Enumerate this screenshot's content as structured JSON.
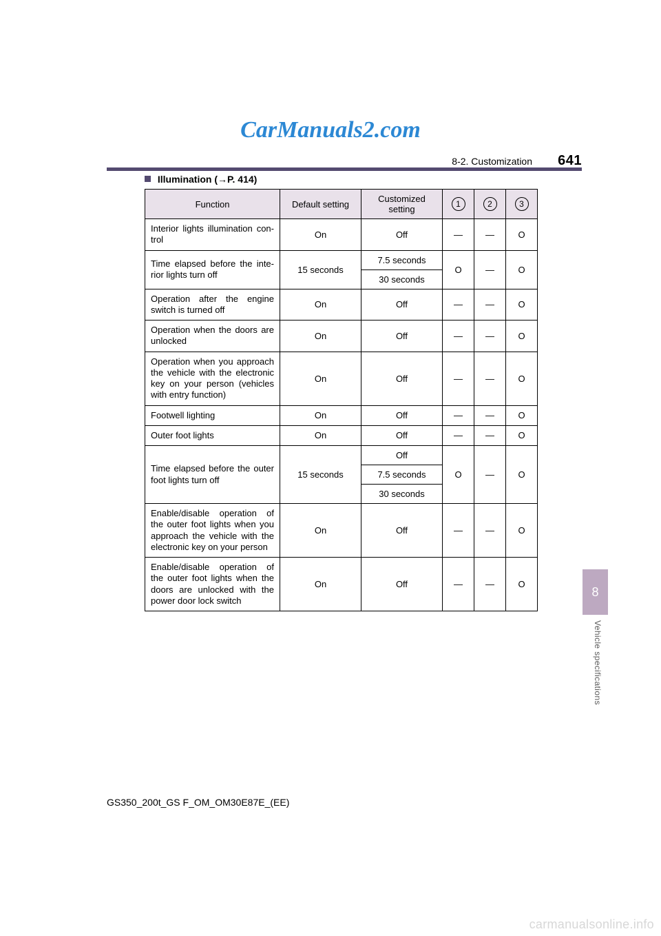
{
  "watermark_top": "CarManuals2.com",
  "section_name": "8-2. Customization",
  "page_number": "641",
  "heading": "Illumination (→P. 414)",
  "table": {
    "columns": [
      "Function",
      "Default setting",
      "Customized setting"
    ],
    "num_cols": [
      "1",
      "2",
      "3"
    ],
    "rows": [
      {
        "func": "Interior lights illumination con-trol",
        "def": "On",
        "cust": [
          "Off"
        ],
        "c1": "—",
        "c2": "—",
        "c3": "O"
      },
      {
        "func": "Time elapsed before the inte-rior lights turn off",
        "def": "15 seconds",
        "cust": [
          "7.5 seconds",
          "30 seconds"
        ],
        "c1": "O",
        "c2": "—",
        "c3": "O"
      },
      {
        "func": "Operation after the engine switch is turned off",
        "def": "On",
        "cust": [
          "Off"
        ],
        "c1": "—",
        "c2": "—",
        "c3": "O"
      },
      {
        "func": "Operation when the doors are unlocked",
        "def": "On",
        "cust": [
          "Off"
        ],
        "c1": "—",
        "c2": "—",
        "c3": "O"
      },
      {
        "func": "Operation when you approach the vehicle with the electronic key on your person (vehicles with entry function)",
        "def": "On",
        "cust": [
          "Off"
        ],
        "c1": "—",
        "c2": "—",
        "c3": "O"
      },
      {
        "func": "Footwell lighting",
        "def": "On",
        "cust": [
          "Off"
        ],
        "c1": "—",
        "c2": "—",
        "c3": "O"
      },
      {
        "func": "Outer foot lights",
        "def": "On",
        "cust": [
          "Off"
        ],
        "c1": "—",
        "c2": "—",
        "c3": "O"
      },
      {
        "func": "Time elapsed before the outer foot lights turn off",
        "def": "15 seconds",
        "cust": [
          "Off",
          "7.5 seconds",
          "30 seconds"
        ],
        "c1": "O",
        "c2": "—",
        "c3": "O"
      },
      {
        "func": "Enable/disable operation of the outer foot lights when you approach the vehicle with the electronic key on your person",
        "def": "On",
        "cust": [
          "Off"
        ],
        "c1": "—",
        "c2": "—",
        "c3": "O"
      },
      {
        "func": "Enable/disable operation of the outer foot lights when the doors are unlocked with the power door lock switch",
        "def": "On",
        "cust": [
          "Off"
        ],
        "c1": "—",
        "c2": "—",
        "c3": "O"
      }
    ]
  },
  "side_tab_number": "8",
  "side_label": "Vehicle specifications",
  "footer_code": "GS350_200t_GS F_OM_OM30E87E_(EE)",
  "watermark_bottom": "carmanualsonline.info",
  "colors": {
    "accent": "#544a70",
    "tab_bg": "#bda9c1",
    "header_bg": "#e9e1ea",
    "watermark_top": "#2c88d4",
    "watermark_bottom": "#d7d7d7"
  }
}
